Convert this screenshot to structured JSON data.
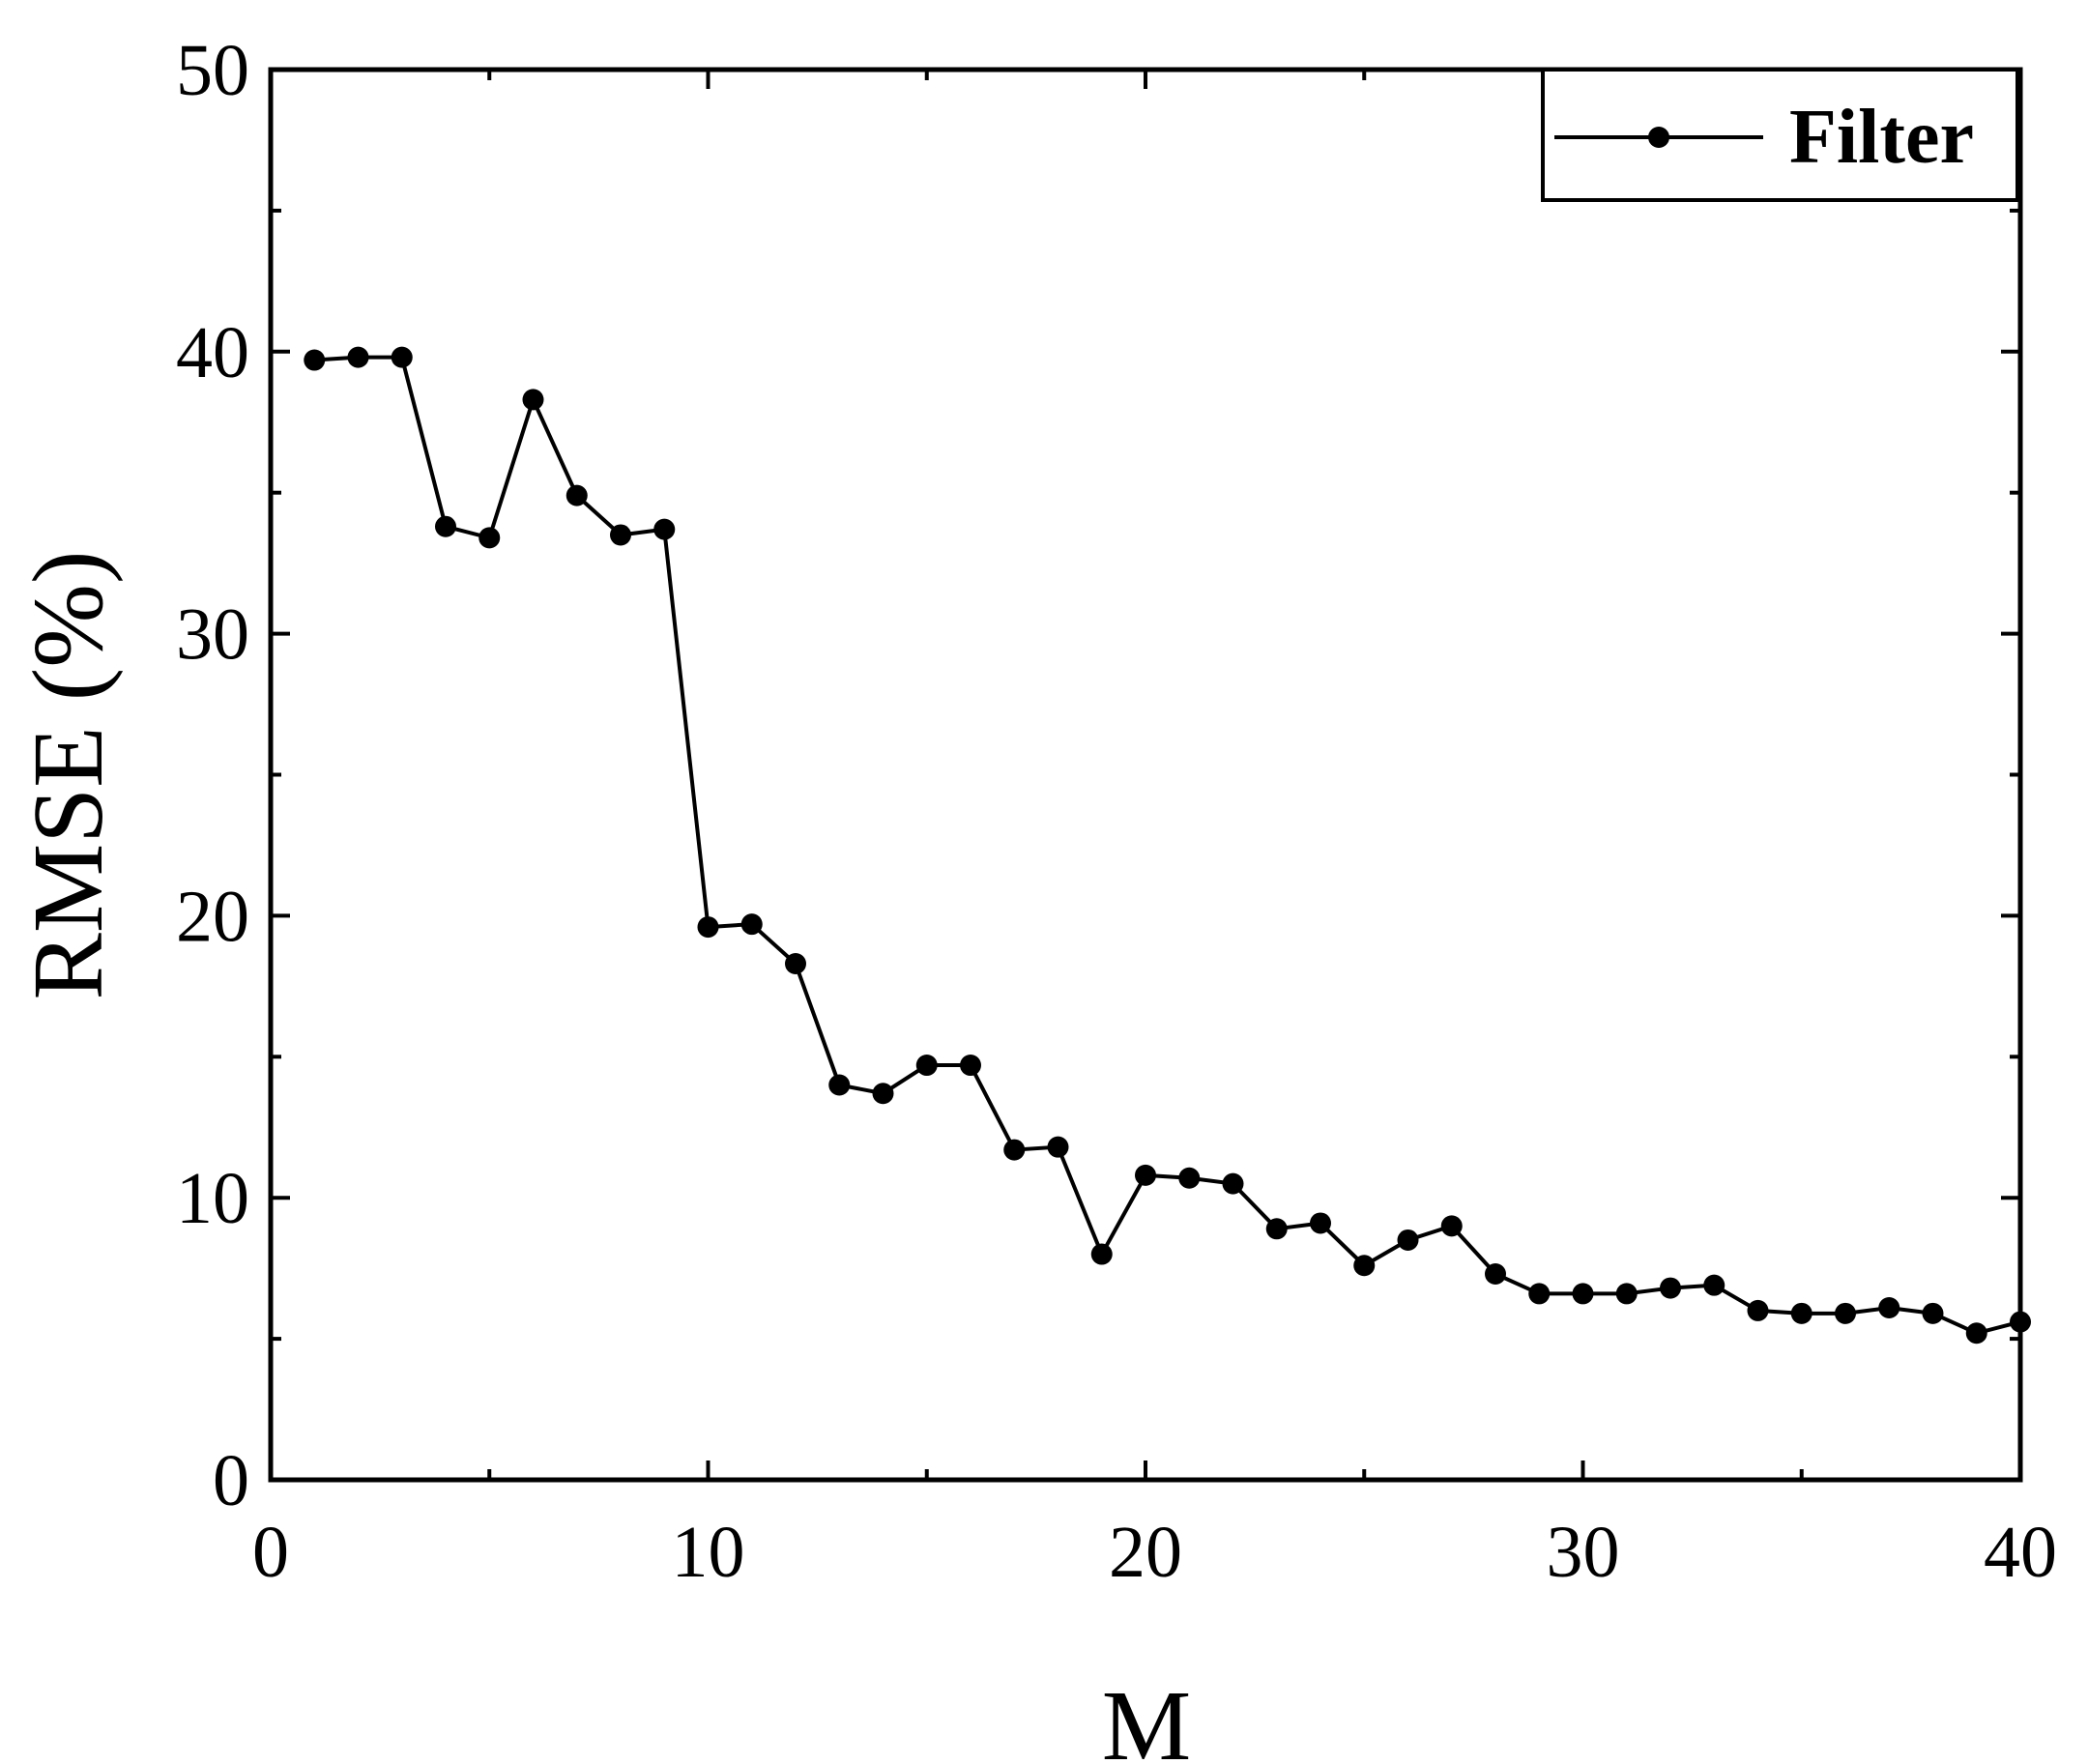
{
  "chart_data": {
    "type": "line",
    "xlabel": "M",
    "ylabel": "RMSE (%)",
    "x": [
      1,
      2,
      3,
      4,
      5,
      6,
      7,
      8,
      9,
      10,
      11,
      12,
      13,
      14,
      15,
      16,
      17,
      18,
      19,
      20,
      21,
      22,
      23,
      24,
      25,
      26,
      27,
      28,
      29,
      30,
      31,
      32,
      33,
      34,
      35,
      36,
      37,
      38,
      39,
      40
    ],
    "series": [
      {
        "name": "Filter",
        "color": "#000000",
        "values": [
          39.7,
          39.8,
          39.8,
          33.8,
          33.4,
          38.3,
          34.9,
          33.5,
          33.7,
          19.6,
          19.7,
          18.3,
          14.0,
          13.7,
          14.7,
          14.7,
          11.7,
          11.8,
          8.0,
          10.8,
          10.7,
          10.5,
          8.9,
          9.1,
          7.6,
          8.5,
          9.0,
          7.3,
          6.6,
          6.6,
          6.6,
          6.8,
          6.9,
          6.0,
          5.9,
          5.9,
          6.1,
          5.9,
          5.2,
          5.6
        ]
      }
    ],
    "xlim": [
      0,
      40
    ],
    "xticks": [
      0,
      10,
      20,
      30,
      40
    ],
    "ylim": [
      0,
      50
    ],
    "yticks": [
      0,
      10,
      20,
      30,
      40,
      50
    ],
    "minor_ticks": true,
    "grid": false,
    "legend": "upper right"
  }
}
